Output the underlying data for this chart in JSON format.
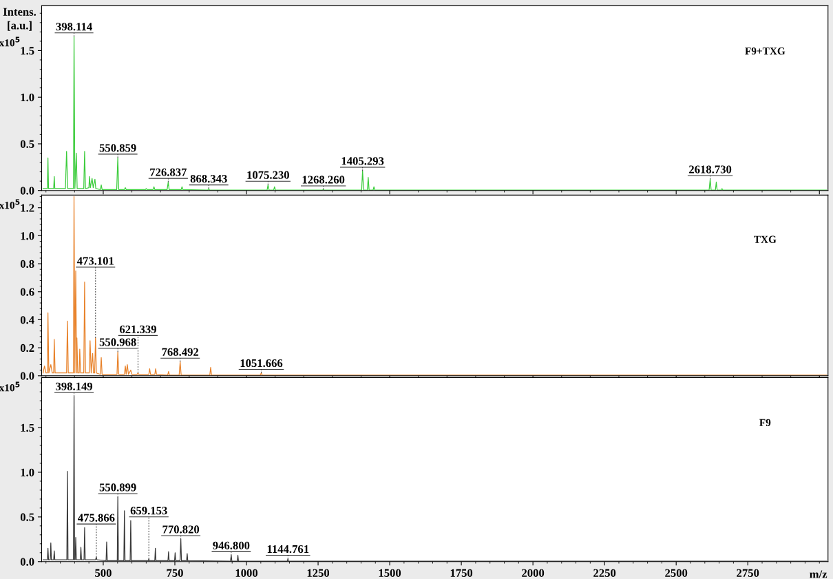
{
  "chart_data": [
    {
      "type": "line",
      "ylabel": "Intens. [a.u.]",
      "xlim": [
        285,
        3030
      ],
      "ylim": [
        0,
        1.98
      ],
      "tick_labels": "y",
      "yticks": [
        {
          "value": 0,
          "label": "0.0"
        },
        {
          "value": 0.5,
          "label": "0.5"
        },
        {
          "value": 1.0,
          "label": "1.0"
        },
        {
          "value": 1.5,
          "label": "1.5"
        }
      ],
      "series": [
        {
          "name": "F9+TXG",
          "color": "#3ccc3c",
          "x": [
            290,
            305,
            307,
            309,
            327,
            329,
            331,
            368,
            372,
            376,
            396,
            398.114,
            401,
            406,
            409,
            432,
            435,
            438,
            450,
            452,
            455,
            461,
            465,
            471,
            474,
            490,
            493,
            496,
            547,
            550.859,
            554,
            574,
            577,
            580,
            647,
            650,
            653,
            674,
            677,
            680,
            723,
            726.837,
            730,
            772,
            775,
            778,
            865,
            868.343,
            871,
            1072,
            1075.23,
            1079,
            1095,
            1098,
            1101,
            1265,
            1268.26,
            1271,
            1402,
            1405.293,
            1409,
            1422,
            1425,
            1428,
            1442,
            1445,
            1448,
            2615,
            2618.73,
            2622,
            2637,
            2640,
            2643,
            2657,
            2660,
            2663,
            3025
          ],
          "values": [
            0.02,
            0.02,
            0.35,
            0.02,
            0.02,
            0.15,
            0.02,
            0.02,
            0.42,
            0.02,
            0.02,
            1.65,
            0.02,
            0.4,
            0.02,
            0.02,
            0.42,
            0.02,
            0.03,
            0.15,
            0.03,
            0.13,
            0.03,
            0.12,
            0.02,
            0.01,
            0.06,
            0.01,
            0.01,
            0.35,
            0.01,
            0.01,
            0.03,
            0.01,
            0.01,
            0.02,
            0.01,
            0.01,
            0.04,
            0.01,
            0.01,
            0.09,
            0.01,
            0.01,
            0.04,
            0.01,
            0.005,
            0.02,
            0.005,
            0.005,
            0.06,
            0.005,
            0.005,
            0.04,
            0.005,
            0.005,
            0.01,
            0.005,
            0.005,
            0.21,
            0.005,
            0.005,
            0.14,
            0.005,
            0.005,
            0.04,
            0.005,
            0.005,
            0.12,
            0.005,
            0.005,
            0.09,
            0.005,
            0.005,
            0.02,
            0.005,
            0.005
          ]
        }
      ],
      "annotations": [
        "x10$^{5}$",
        {
          "text": "398.114",
          "x": 398.114,
          "y": 1.65
        },
        {
          "text": "550.859",
          "x": 550.859,
          "y": 0.35
        },
        {
          "text": "726.837",
          "x": 726.837,
          "y": 0.09
        },
        {
          "text": "868.343",
          "x": 868.343,
          "y": 0.02
        },
        {
          "text": "1075.230",
          "x": 1075.23,
          "y": 0.06
        },
        {
          "text": "1268.260",
          "x": 1268.26,
          "y": 0.01
        },
        {
          "text": "1405.293",
          "x": 1405.293,
          "y": 0.21
        },
        {
          "text": "2618.730",
          "x": 2618.73,
          "y": 0.12
        }
      ]
    },
    {
      "type": "line",
      "xlim": [
        285,
        3030
      ],
      "ylim": [
        0,
        1.29
      ],
      "tick_labels": "y",
      "yticks": [
        {
          "value": 0,
          "label": "0.0"
        },
        {
          "value": 0.2,
          "label": "0.2"
        },
        {
          "value": 0.4,
          "label": "0.4"
        },
        {
          "value": 0.6,
          "label": "0.6"
        },
        {
          "value": 0.8,
          "label": "0.8"
        },
        {
          "value": 1.0,
          "label": "1.0"
        },
        {
          "value": 1.2,
          "label": "1.2"
        }
      ],
      "series": [
        {
          "name": "TXG",
          "color": "#e8822a",
          "x": [
            290,
            295,
            300,
            305,
            307,
            310,
            317,
            322,
            327,
            329,
            332,
            372,
            375,
            378,
            396,
            398,
            401,
            404,
            407,
            408,
            411,
            416,
            418,
            421,
            432,
            435,
            438,
            451,
            454,
            458,
            463,
            466,
            470,
            473.101,
            476,
            490,
            493,
            496,
            548,
            550.968,
            554,
            574,
            577,
            580,
            584,
            588,
            596,
            600,
            618,
            621.339,
            624,
            659,
            662,
            665,
            680,
            683,
            686,
            725,
            728,
            731,
            765,
            768.492,
            772,
            872,
            875,
            878,
            1048,
            1051.666,
            1055,
            3025
          ],
          "values": [
            0.02,
            0.07,
            0.02,
            0.02,
            0.45,
            0.02,
            0.08,
            0.02,
            0.02,
            0.26,
            0.02,
            0.02,
            0.39,
            0.02,
            0.02,
            1.28,
            0.02,
            0.75,
            0.02,
            0.27,
            0.02,
            0.02,
            0.19,
            0.02,
            0.02,
            0.67,
            0.02,
            0.02,
            0.25,
            0.02,
            0.16,
            0.02,
            0.02,
            0.27,
            0.02,
            0.01,
            0.13,
            0.01,
            0.01,
            0.17,
            0.01,
            0.01,
            0.07,
            0.01,
            0.08,
            0.01,
            0.04,
            0.01,
            0.01,
            0.02,
            0.01,
            0.01,
            0.05,
            0.01,
            0.01,
            0.05,
            0.01,
            0.005,
            0.03,
            0.005,
            0.005,
            0.1,
            0.005,
            0.005,
            0.06,
            0.005,
            0.005,
            0.02,
            0.005,
            0.005
          ]
        }
      ],
      "annotations": [
        "x10$^{5}$",
        {
          "text": "473.101",
          "x": 473.101,
          "y": 0.27
        },
        {
          "text": "550.968",
          "x": 550.968,
          "y": 0.17
        },
        {
          "text": "621.339",
          "x": 621.339,
          "y": 0.02
        },
        {
          "text": "768.492",
          "x": 768.492,
          "y": 0.1
        },
        {
          "text": "1051.666",
          "x": 1051.666,
          "y": 0.02
        }
      ]
    },
    {
      "type": "line",
      "xlabel": "m/z",
      "xlim": [
        285,
        3030
      ],
      "ylim": [
        0,
        2.06
      ],
      "xticks": [
        500,
        750,
        1000,
        1250,
        1500,
        1750,
        2000,
        2250,
        2500,
        2750
      ],
      "yticks": [
        {
          "value": 0,
          "label": "0.0"
        },
        {
          "value": 0.5,
          "label": "0.5"
        },
        {
          "value": 1.0,
          "label": "1.0"
        },
        {
          "value": 1.5,
          "label": "1.5"
        }
      ],
      "series": [
        {
          "name": "F9",
          "color": "#3a3a3a",
          "x": [
            290,
            305,
            307,
            309,
            315,
            317,
            319,
            327,
            329,
            331,
            373,
            375,
            377,
            396,
            398.149,
            400,
            402,
            404,
            406,
            420,
            422,
            424,
            433,
            435,
            437,
            473,
            475.866,
            478,
            510,
            512,
            514,
            549,
            550.899,
            553,
            572,
            574,
            576,
            594,
            596,
            598,
            657,
            659.153,
            661,
            680,
            682,
            684,
            726,
            728,
            730,
            749,
            751,
            753,
            768,
            770.82,
            773,
            791,
            793,
            795,
            944,
            946.8,
            949,
            968,
            970,
            972,
            1142,
            1144.761,
            1147,
            3025
          ],
          "values": [
            0.02,
            0.02,
            0.15,
            0.02,
            0.02,
            0.21,
            0.02,
            0.02,
            0.12,
            0.02,
            0.02,
            1.01,
            0.02,
            0.02,
            1.85,
            0.02,
            0.02,
            0.27,
            0.02,
            0.02,
            0.16,
            0.02,
            0.02,
            0.38,
            0.02,
            0.02,
            0.05,
            0.02,
            0.01,
            0.22,
            0.01,
            0.01,
            0.72,
            0.01,
            0.01,
            0.57,
            0.01,
            0.01,
            0.46,
            0.01,
            0.01,
            0.03,
            0.01,
            0.01,
            0.15,
            0.01,
            0.01,
            0.11,
            0.01,
            0.01,
            0.1,
            0.01,
            0.01,
            0.25,
            0.01,
            0.01,
            0.09,
            0.01,
            0.005,
            0.07,
            0.005,
            0.005,
            0.07,
            0.005,
            0.005,
            0.03,
            0.005,
            0.005
          ]
        }
      ],
      "annotations": [
        "x10$^{5}$",
        {
          "text": "398.149",
          "x": 398.149,
          "y": 1.85
        },
        {
          "text": "475.866",
          "x": 475.866,
          "y": 0.05
        },
        {
          "text": "550.899",
          "x": 550.899,
          "y": 0.72
        },
        {
          "text": "659.153",
          "x": 659.153,
          "y": 0.03
        },
        {
          "text": "770.820",
          "x": 770.82,
          "y": 0.25
        },
        {
          "text": "946.800",
          "x": 946.8,
          "y": 0.07
        },
        {
          "text": "1144.761",
          "x": 1144.761,
          "y": 0.03
        }
      ]
    }
  ]
}
